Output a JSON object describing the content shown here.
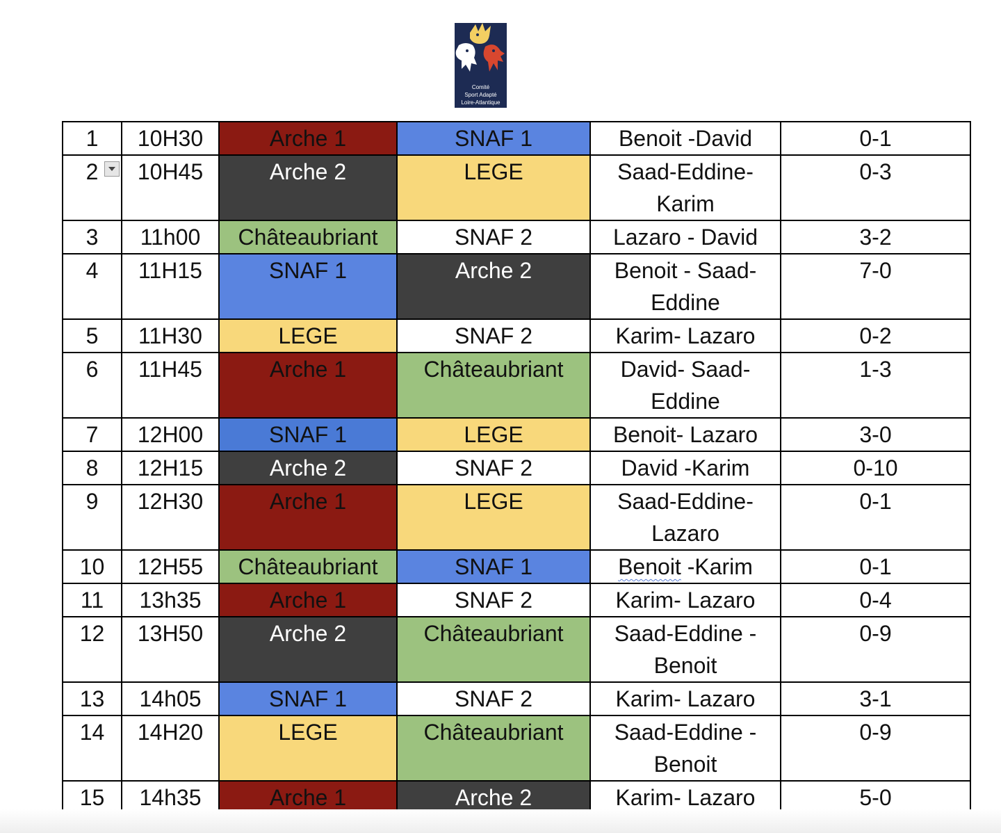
{
  "logo": {
    "caption_line1": "Comité",
    "caption_line2": "Sport Adapté",
    "caption_line3": "Loire-Atlantique"
  },
  "colors": {
    "Arche 1": "#8b1a12",
    "Arche 2": "#3f3f3f",
    "SNAF 1": "#5a84e0",
    "SNAF 2": "#ffffff",
    "LEGE": "#f8d87b",
    "Châteaubriant": "#9cc27f"
  },
  "rows": [
    {
      "num": "1",
      "time": "10H30",
      "team_a": "Arche 1",
      "team_b": "SNAF 1",
      "scorers": "Benoit -David",
      "score": "0-1"
    },
    {
      "num": "2",
      "time": "10H45",
      "team_a": "Arche 2",
      "team_b": "LEGE",
      "scorers": "Saad-Eddine- Karim",
      "score": "0-3"
    },
    {
      "num": "3",
      "time": "11h00",
      "team_a": "Châteaubriant",
      "team_b": "SNAF 2",
      "scorers": "Lazaro - David",
      "score": "3-2"
    },
    {
      "num": "4",
      "time": "11H15",
      "team_a": "SNAF 1",
      "team_b": "Arche 2",
      "scorers": "Benoit - Saad-Eddine",
      "score": "7-0"
    },
    {
      "num": "5",
      "time": "11H30",
      "team_a": "LEGE",
      "team_b": "SNAF 2",
      "scorers": "Karim- Lazaro",
      "score": "0-2"
    },
    {
      "num": "6",
      "time": "11H45",
      "team_a": "Arche 1",
      "team_b": "Châteaubriant",
      "scorers": "David- Saad-Eddine",
      "score": "1-3"
    },
    {
      "num": "7",
      "time": "12H00",
      "team_a": "SNAF 1",
      "team_b": "LEGE",
      "scorers": "Benoit- Lazaro",
      "score": "3-0"
    },
    {
      "num": "8",
      "time": "12H15",
      "team_a": "Arche 2",
      "team_b": "SNAF 2",
      "scorers": "David -Karim",
      "score": "0-10"
    },
    {
      "num": "9",
      "time": "12H30",
      "team_a": "Arche 1",
      "team_b": "LEGE",
      "scorers": "Saad-Eddine- Lazaro",
      "score": "0-1"
    },
    {
      "num": "10",
      "time": "12H55",
      "team_a": "Châteaubriant",
      "team_b": "SNAF 1",
      "scorers_a": "Benoit",
      "scorers_b": " -Karim",
      "score": "0-1"
    },
    {
      "num": "11",
      "time": "13h35",
      "team_a": "Arche 1",
      "team_b": "SNAF 2",
      "scorers": "Karim- Lazaro",
      "score": "0-4"
    },
    {
      "num": "12",
      "time": "13H50",
      "team_a": "Arche 2",
      "team_b": "Châteaubriant",
      "scorers": "Saad-Eddine -Benoit",
      "score": "0-9"
    },
    {
      "num": "13",
      "time": "14h05",
      "team_a": "SNAF 1",
      "team_b": "SNAF 2",
      "scorers": "Karim- Lazaro",
      "score": "3-1"
    },
    {
      "num": "14",
      "time": "14H20",
      "team_a": "LEGE",
      "team_b": "Châteaubriant",
      "scorers": "Saad-Eddine -Benoit",
      "score": "0-9"
    },
    {
      "num": "15",
      "time": "14h35",
      "team_a": "Arche 1",
      "team_b": "Arche 2",
      "scorers": "Karim- Lazaro",
      "score": "5-0"
    }
  ]
}
